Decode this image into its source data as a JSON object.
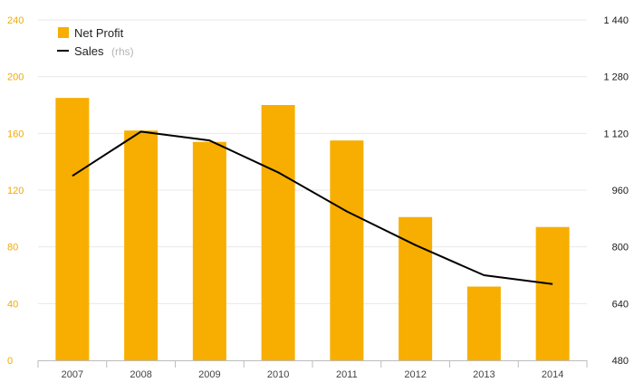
{
  "chart_data": {
    "type": "bar",
    "categories": [
      "2007",
      "2008",
      "2009",
      "2010",
      "2011",
      "2012",
      "2013",
      "2014"
    ],
    "series": [
      {
        "name": "Net Profit",
        "type": "bar",
        "axis": "left",
        "values": [
          185,
          162,
          154,
          180,
          155,
          101,
          52,
          94
        ]
      },
      {
        "name": "Sales",
        "type": "line",
        "axis": "right",
        "values": [
          1000,
          1125,
          1100,
          1010,
          900,
          805,
          720,
          695
        ]
      }
    ],
    "y_left": {
      "ylim": [
        0,
        240
      ],
      "ticks": [
        "0",
        "40",
        "80",
        "120",
        "160",
        "200",
        "240"
      ]
    },
    "y_right": {
      "ylim": [
        480,
        1440
      ],
      "ticks": [
        "480",
        "640",
        "800",
        "960",
        "1 120",
        "1 280",
        "1 440"
      ]
    },
    "legend": {
      "placement": "top-left",
      "items": [
        {
          "label": "Net Profit",
          "note": ""
        },
        {
          "label": "Sales",
          "note": "(rhs)"
        }
      ]
    },
    "grid": true,
    "colors": {
      "bar": "#f7ae00",
      "line": "#000000",
      "grid": "#e8e8e8",
      "left_axis_text": "#f2a900"
    }
  }
}
